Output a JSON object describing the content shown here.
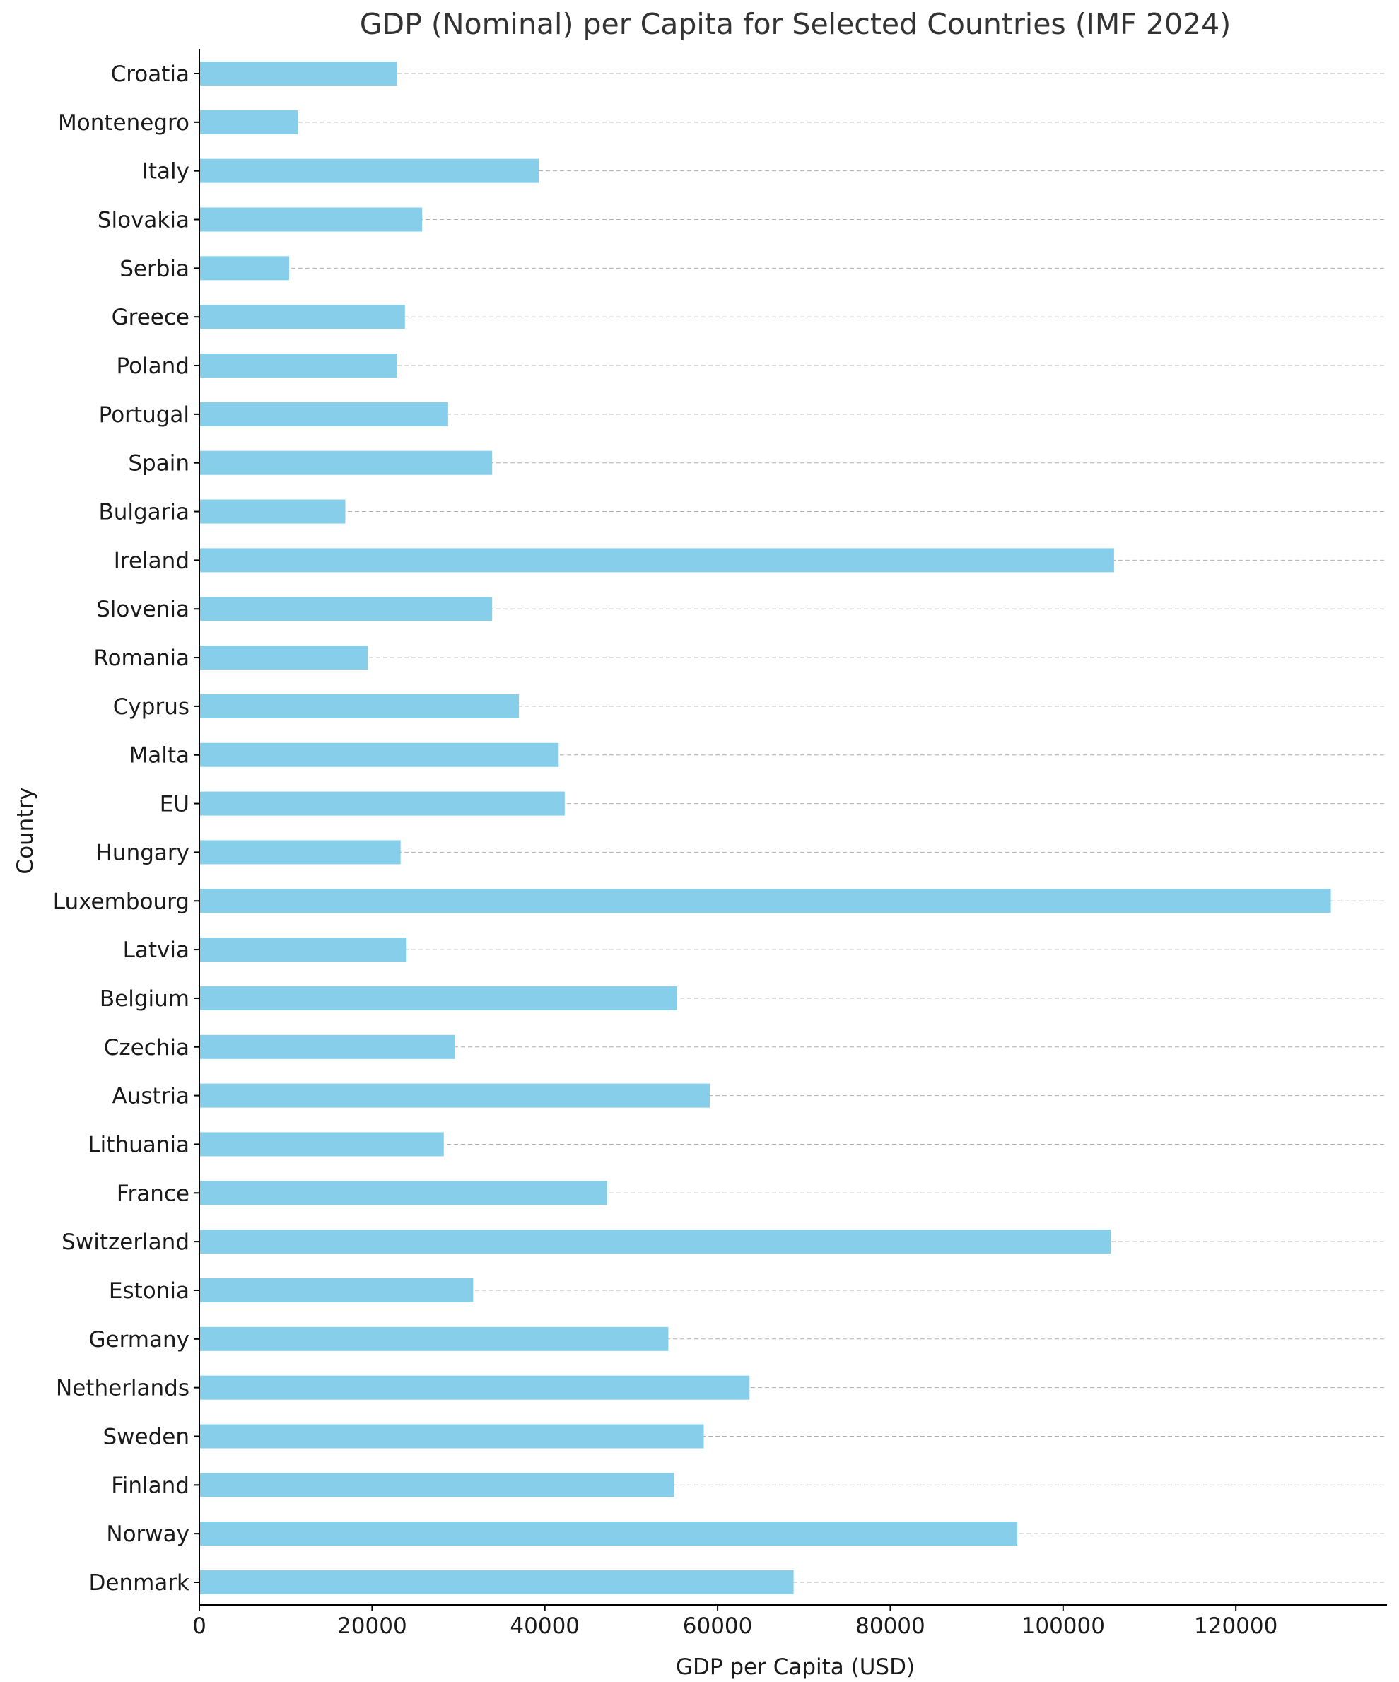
{
  "chart_data": {
    "type": "bar",
    "orientation": "horizontal",
    "title": "GDP (Nominal) per Capita for Selected Countries (IMF 2024)",
    "xlabel": "GDP per Capita (USD)",
    "ylabel": "Country",
    "xlim": [
      0,
      137500
    ],
    "xticks": [
      0,
      20000,
      40000,
      60000,
      80000,
      100000,
      120000
    ],
    "xtick_labels": [
      "0",
      "20000",
      "40000",
      "60000",
      "80000",
      "100000",
      "120000"
    ],
    "grid": "horizontal dashed",
    "bar_color": "#87ceeb",
    "categories": [
      "Croatia",
      "Montenegro",
      "Italy",
      "Slovakia",
      "Serbia",
      "Greece",
      "Poland",
      "Portugal",
      "Spain",
      "Bulgaria",
      "Ireland",
      "Slovenia",
      "Romania",
      "Cyprus",
      "Malta",
      "EU",
      "Hungary",
      "Luxembourg",
      "Latvia",
      "Belgium",
      "Czechia",
      "Austria",
      "Lithuania",
      "France",
      "Switzerland",
      "Estonia",
      "Germany",
      "Netherlands",
      "Sweden",
      "Finland",
      "Norway",
      "Denmark"
    ],
    "values": [
      22900,
      11400,
      39300,
      25800,
      10400,
      23800,
      22900,
      28800,
      33900,
      16900,
      105900,
      33900,
      19500,
      37000,
      41600,
      42300,
      23300,
      131000,
      24000,
      55300,
      29600,
      59100,
      28300,
      47200,
      105500,
      31700,
      54300,
      63700,
      58400,
      55000,
      94700,
      68800
    ]
  }
}
